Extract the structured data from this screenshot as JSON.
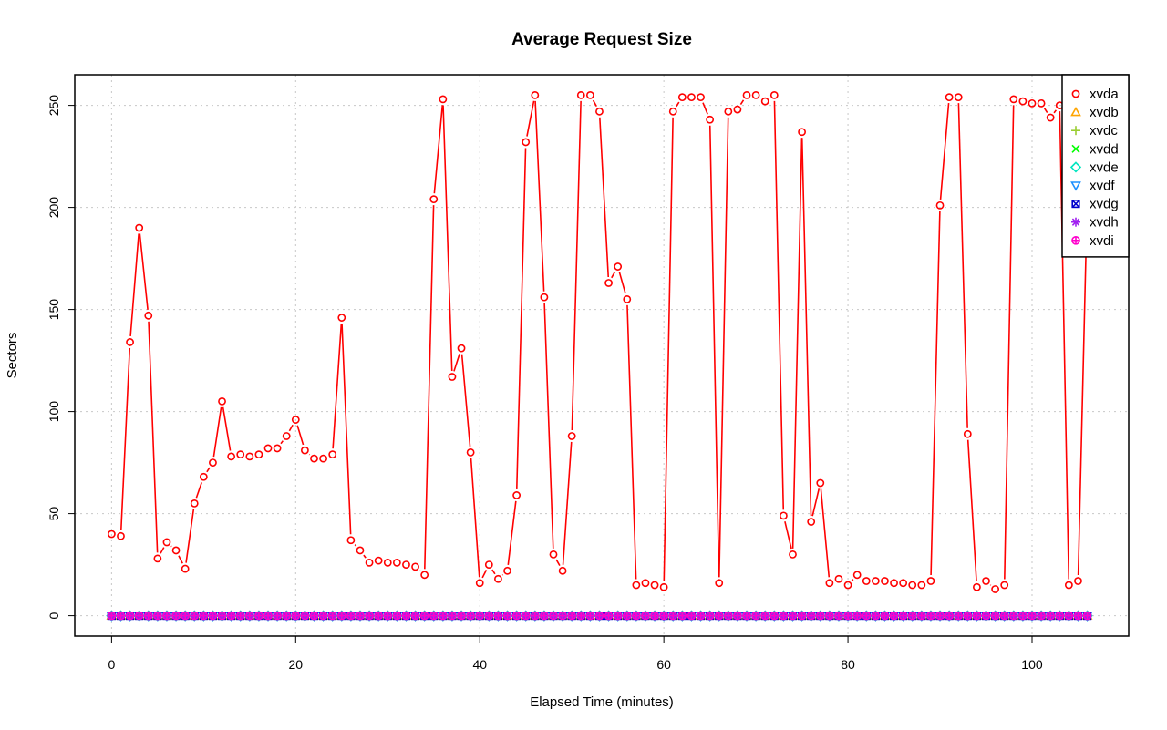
{
  "chart_data": {
    "type": "line",
    "title": "Average Request Size",
    "xlabel": "Elapsed Time (minutes)",
    "ylabel": "Sectors",
    "xlim": [
      -4,
      110.5
    ],
    "ylim": [
      -10,
      265
    ],
    "x_ticks": [
      0,
      20,
      40,
      60,
      80,
      100
    ],
    "y_ticks": [
      0,
      50,
      100,
      150,
      200,
      250
    ],
    "grid": true,
    "legend_position": "top-right",
    "x_start": 0,
    "x_end": 106,
    "series": [
      {
        "name": "xvda",
        "color": "#ff0000",
        "marker": "circle",
        "values": [
          40,
          39,
          134,
          190,
          147,
          28,
          36,
          32,
          23,
          55,
          68,
          75,
          105,
          78,
          79,
          78,
          79,
          82,
          82,
          88,
          96,
          81,
          77,
          77,
          79,
          146,
          37,
          32,
          26,
          27,
          26,
          26,
          25,
          24,
          20,
          204,
          253,
          117,
          131,
          80,
          16,
          25,
          18,
          22,
          59,
          232,
          255,
          156,
          30,
          22,
          88,
          255,
          255,
          247,
          163,
          171,
          155,
          15,
          16,
          15,
          14,
          247,
          254,
          254,
          254,
          243,
          16,
          247,
          248,
          255,
          255,
          252,
          255,
          49,
          30,
          237,
          46,
          65,
          16,
          18,
          15,
          20,
          17,
          17,
          17,
          16,
          16,
          15,
          15,
          17,
          201,
          254,
          254,
          89,
          14,
          17,
          13,
          15,
          253,
          252,
          251,
          251,
          244,
          250,
          15,
          17,
          205
        ]
      },
      {
        "name": "xvdb",
        "color": "#ffa500",
        "marker": "triangle-up",
        "constant": 0
      },
      {
        "name": "xvdc",
        "color": "#9acd32",
        "marker": "plus",
        "constant": 0
      },
      {
        "name": "xvdd",
        "color": "#00ff00",
        "marker": "cross",
        "constant": 0
      },
      {
        "name": "xvde",
        "color": "#00e5c0",
        "marker": "diamond",
        "constant": 0
      },
      {
        "name": "xvdf",
        "color": "#1e90ff",
        "marker": "triangle-down",
        "constant": 0
      },
      {
        "name": "xvdg",
        "color": "#0000cd",
        "marker": "square-x",
        "constant": 0
      },
      {
        "name": "xvdh",
        "color": "#a020f0",
        "marker": "asterisk",
        "constant": 0
      },
      {
        "name": "xvdi",
        "color": "#ff00cc",
        "marker": "circle-plus",
        "constant": 0
      }
    ]
  }
}
